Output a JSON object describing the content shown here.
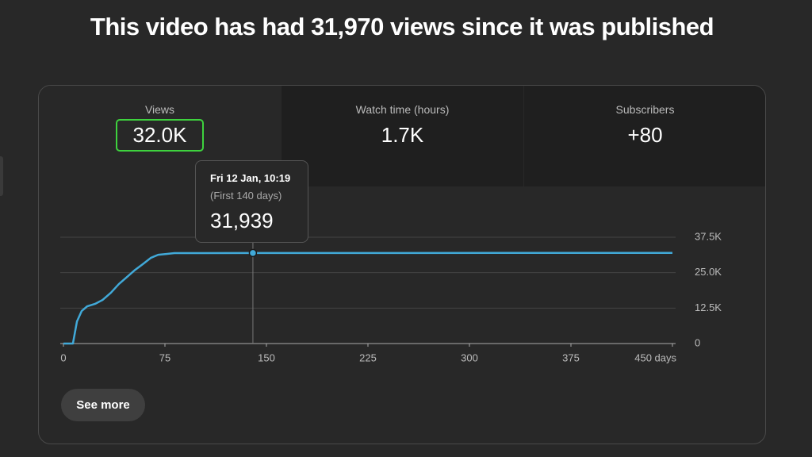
{
  "header": {
    "title": "This video has had 31,970 views since it was published"
  },
  "metrics": [
    {
      "label": "Views",
      "value": "32.0K",
      "selected": true
    },
    {
      "label": "Watch time (hours)",
      "value": "1.7K",
      "selected": false
    },
    {
      "label": "Subscribers",
      "value": "+80",
      "selected": false
    }
  ],
  "chart_data": {
    "type": "line",
    "x": [
      0,
      7,
      10,
      13.5,
      17.6,
      23.4,
      29,
      35,
      41,
      47,
      53,
      58.6,
      64.5,
      70,
      76,
      82,
      140,
      450
    ],
    "series": [
      {
        "name": "Views",
        "color": "#41a9d8",
        "values": [
          0,
          0,
          7800,
          11500,
          13150,
          14000,
          15400,
          17900,
          21000,
          23500,
          26000,
          28000,
          30200,
          31300,
          31600,
          31900,
          31939,
          31970
        ]
      }
    ],
    "xlim": [
      0,
      450
    ],
    "xticks": [
      0,
      75,
      150,
      225,
      300,
      375,
      {
        "value": 450,
        "label": "450 days"
      }
    ],
    "ylim": [
      0,
      37500
    ],
    "yticks": [
      0,
      {
        "value": 12500,
        "label": "12.5K"
      },
      {
        "value": 25000,
        "label": "25.0K"
      },
      {
        "value": 37500,
        "label": "37.5K"
      }
    ],
    "grid": true,
    "tooltip": {
      "title": "Fri 12 Jan, 10:19",
      "subtitle": "(First 140 days)",
      "x": 140,
      "value": 31939,
      "label": "31,939"
    }
  },
  "button": {
    "label": "See more"
  }
}
